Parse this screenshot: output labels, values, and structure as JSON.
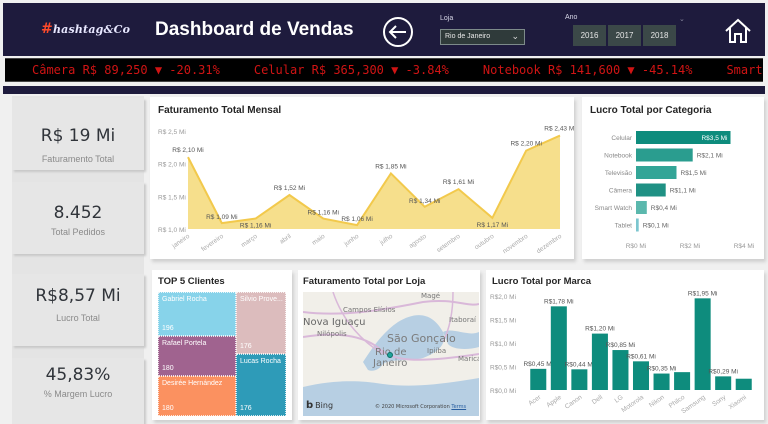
{
  "header": {
    "logo_hash": "#",
    "logo_text": "hashtag&Co",
    "title": "Dashboard de Vendas",
    "back_icon": "arrow-left-circle-icon",
    "home_icon": "home-icon",
    "loja": {
      "label": "Loja",
      "selected": "Rio de Janeiro"
    },
    "ano": {
      "label": "Ano",
      "options": [
        "2016",
        "2017",
        "2018"
      ]
    }
  },
  "ticker": {
    "items": [
      {
        "text": "Câmera R$ 89,250 ▼ -20.31%"
      },
      {
        "text": "Celular R$ 365,300 ▼ -3.84%"
      },
      {
        "text": "Notebook R$ 141,600 ▼ -45.14%"
      },
      {
        "text": "Smart"
      }
    ]
  },
  "kpis": [
    {
      "value": "R$ 19 Mi",
      "label": "Faturamento Total"
    },
    {
      "value": "8.452",
      "label": "Total Pedidos"
    },
    {
      "value": "R$8,57 Mi",
      "label": "Lucro Total"
    },
    {
      "value": "45,83%",
      "label": "% Margem Lucro"
    }
  ],
  "colors": {
    "header_bg": "#1e1b3d",
    "ticker_text": "#d01414",
    "area_fill": "#f6df8c",
    "area_line": "#f2c94c",
    "teal": "#0e8c7d"
  },
  "chart_data": [
    {
      "type": "area",
      "title": "Faturamento Total Mensal",
      "categories": [
        "janeiro",
        "fevereiro",
        "março",
        "abril",
        "maio",
        "junho",
        "julho",
        "agosto",
        "setembro",
        "outubro",
        "novembro",
        "dezembro"
      ],
      "values": [
        2.1,
        1.09,
        1.16,
        1.52,
        1.16,
        1.06,
        1.85,
        1.34,
        1.61,
        1.17,
        2.2,
        2.43
      ],
      "labels": [
        "R$ 2,10 Mi",
        "R$ 1,09 Mi",
        "R$ 1,16 Mi",
        "R$ 1,52 Mi",
        "R$ 1,16 Mi",
        "R$ 1,06 Mi",
        "R$ 1,85 Mi",
        "R$ 1,34 Mi",
        "R$ 1,61 Mi",
        "R$ 1,17 Mi",
        "R$ 2,20 Mi",
        "R$ 2,43 Mi"
      ],
      "yticks": [
        "R$ 1,0 Mi",
        "R$ 1,5 Mi",
        "R$ 2,0 Mi",
        "R$ 2,5 Mi"
      ],
      "ylim": [
        1.0,
        2.5
      ],
      "xlabel": "",
      "ylabel": ""
    },
    {
      "type": "bar",
      "orientation": "horizontal",
      "title": "Lucro Total por Categoria",
      "categories": [
        "Celular",
        "Notebook",
        "Televisão",
        "Câmera",
        "Smart Watch",
        "Tablet"
      ],
      "values": [
        3.5,
        2.1,
        1.5,
        1.1,
        0.4,
        0.1
      ],
      "labels": [
        "R$3,5 Mi",
        "R$2,1 Mi",
        "R$1,5 Mi",
        "R$1,1 Mi",
        "R$0,4 Mi",
        "R$0,1 Mi"
      ],
      "xticks": [
        "R$0 Mi",
        "R$2 Mi",
        "R$4 Mi"
      ],
      "xlim": [
        0,
        4
      ]
    },
    {
      "type": "treemap",
      "title": "TOP 5 Clientes",
      "items": [
        {
          "name": "Gabriel Rocha",
          "value": 196,
          "color": "#87d3ea"
        },
        {
          "name": "Rafael Portela",
          "value": 180,
          "color": "#a0638f"
        },
        {
          "name": "Desirée Hernández",
          "value": 180,
          "color": "#fb9160"
        },
        {
          "name": "Silvio Prove...",
          "value": 176,
          "color": "#dcbcbd"
        },
        {
          "name": "Lucas Rocha",
          "value": 176,
          "color": "#2e9bb8"
        }
      ]
    },
    {
      "type": "bar",
      "title": "Lucro Total por Marca",
      "categories": [
        "Acer",
        "Apple",
        "Canon",
        "Dell",
        "LG",
        "Motorola",
        "Nikon",
        "Philco",
        "Samsung",
        "Sony",
        "Xiaomi"
      ],
      "values": [
        0.45,
        1.78,
        0.44,
        1.2,
        0.85,
        0.61,
        0.35,
        0.38,
        1.95,
        0.29,
        0.24
      ],
      "labels": [
        "R$0,45 Mi",
        "R$1,78 Mi",
        "R$0,44 Mi",
        "R$1,20 Mi",
        "R$0,85 Mi",
        "R$0,61 Mi",
        "R$0,35 Mi",
        "",
        "R$1,95 Mi",
        "R$0,29 Mi",
        ""
      ],
      "yticks": [
        "R$0,0 Mi",
        "R$0,5 Mi",
        "R$1,0 Mi",
        "R$1,5 Mi",
        "R$2,0 Mi"
      ],
      "ylim": [
        0,
        2.0
      ]
    }
  ],
  "map": {
    "title": "Faturamento Total por Loja",
    "places": [
      "Magé",
      "Campos Elísios",
      "Nova Iguaçu",
      "Nilópolis",
      "Itaboraí",
      "São Gonçalo",
      "Rio de",
      "Janeiro",
      "Ipiíba",
      "Maricá"
    ],
    "bing_label": "Bing",
    "copyright": "© 2020 Microsoft Corporation",
    "terms": "Terms"
  }
}
